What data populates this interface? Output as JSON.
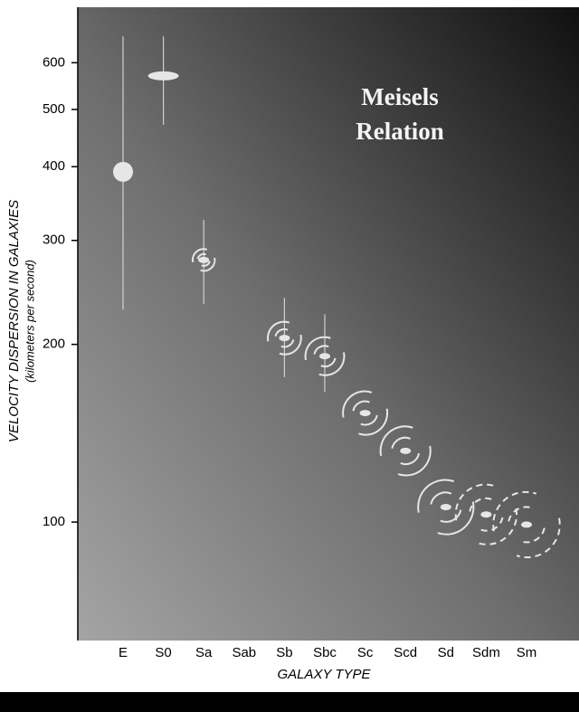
{
  "chart_data": {
    "type": "errorbar",
    "annotation": [
      "Meisels",
      "Relation"
    ],
    "y_label": "VELOCITY DISPERSION IN GALAXIES",
    "y_sublabel": "(kilometers per second)",
    "x_label": "GALAXY TYPE",
    "categories": [
      "E",
      "S0",
      "Sa",
      "Sab",
      "Sb",
      "Sbc",
      "Sc",
      "Scd",
      "Sd",
      "Sdm",
      "Sm"
    ],
    "values": [
      392,
      570,
      278,
      null,
      205,
      191,
      153,
      132,
      106,
      103,
      99
    ],
    "upper": [
      665,
      665,
      325,
      null,
      240,
      225,
      null,
      null,
      null,
      null,
      null
    ],
    "lower": [
      229,
      471,
      234,
      null,
      176,
      166,
      null,
      null,
      null,
      null,
      null
    ],
    "color": "#e6e6e6",
    "log_y": true,
    "ylim": [
      63,
      745
    ],
    "yticks": [
      100,
      200,
      300,
      400,
      500,
      600
    ]
  }
}
